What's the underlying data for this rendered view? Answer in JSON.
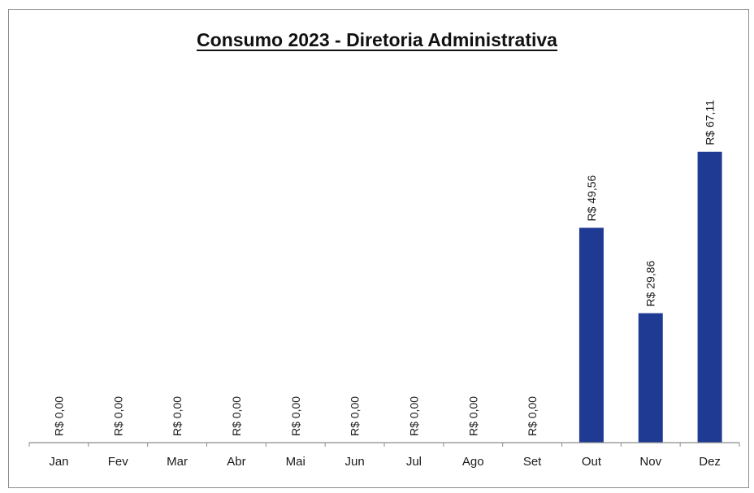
{
  "chart_data": {
    "type": "bar",
    "title": "Consumo 2023 - Diretoria Administrativa",
    "xlabel": "",
    "ylabel": "",
    "categories": [
      "Jan",
      "Fev",
      "Mar",
      "Abr",
      "Mai",
      "Jun",
      "Jul",
      "Ago",
      "Set",
      "Out",
      "Nov",
      "Dez"
    ],
    "values": [
      0,
      0,
      0,
      0,
      0,
      0,
      0,
      0,
      0,
      49.56,
      29.86,
      67.11
    ],
    "data_labels": [
      "R$ 0,00",
      "R$ 0,00",
      "R$ 0,00",
      "R$ 0,00",
      "R$ 0,00",
      "R$ 0,00",
      "R$ 0,00",
      "R$ 0,00",
      "R$ 0,00",
      "R$ 49,56",
      "R$ 29,86",
      "R$ 67,11"
    ],
    "ylim": [
      0,
      80
    ],
    "grid": false,
    "legend": "none",
    "bar_color": "#1f3a93"
  }
}
